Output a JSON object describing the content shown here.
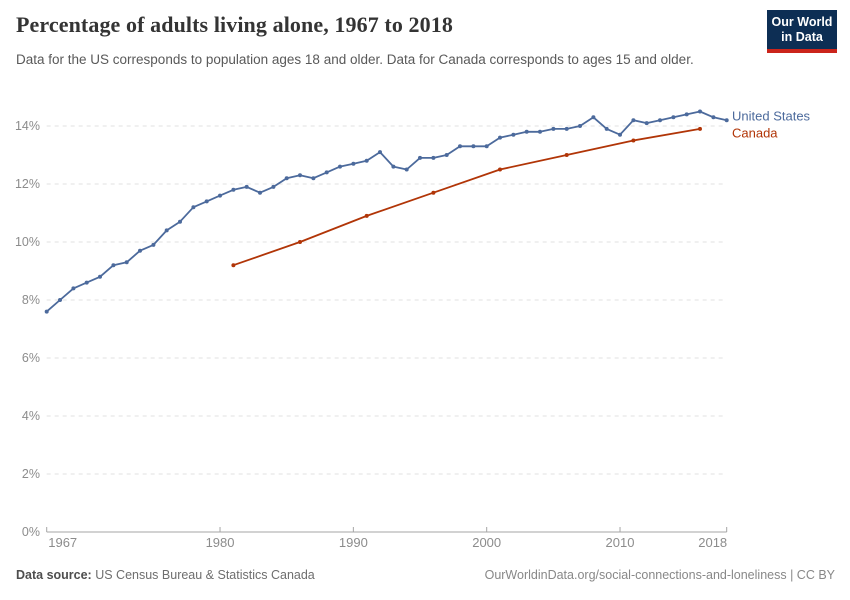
{
  "header": {
    "title": "Percentage of adults living alone, 1967 to 2018",
    "subtitle": "Data for the US corresponds to population ages 18 and older. Data for Canada corresponds to ages 15 and older.",
    "logo": {
      "line1": "Our World",
      "line2": "in Data",
      "bg_color": "#0D2E54",
      "accent_color": "#CB241B"
    }
  },
  "chart_data": {
    "type": "line",
    "title": "Percentage of adults living alone, 1967 to 2018",
    "xlabel": "",
    "ylabel": "",
    "xlim": [
      1967,
      2018
    ],
    "ylim": [
      0,
      14
    ],
    "grid": "horizontal-dashed",
    "legend_position": "right-of-line-end",
    "ytick_suffix": "%",
    "yticks": [
      0,
      2,
      4,
      6,
      8,
      10,
      12,
      14
    ],
    "xticks": [
      1967,
      1980,
      1990,
      2000,
      2010,
      2018
    ],
    "series": [
      {
        "name": "United States",
        "color": "#4C6A9C",
        "x": [
          1967,
          1968,
          1969,
          1970,
          1971,
          1972,
          1973,
          1974,
          1975,
          1976,
          1977,
          1978,
          1979,
          1980,
          1981,
          1982,
          1983,
          1984,
          1985,
          1986,
          1987,
          1988,
          1989,
          1990,
          1991,
          1992,
          1993,
          1994,
          1995,
          1996,
          1997,
          1998,
          1999,
          2000,
          2001,
          2002,
          2003,
          2004,
          2005,
          2006,
          2007,
          2008,
          2009,
          2010,
          2011,
          2012,
          2013,
          2014,
          2015,
          2016,
          2017,
          2018
        ],
        "values": [
          7.6,
          8.0,
          8.4,
          8.6,
          8.8,
          9.2,
          9.3,
          9.7,
          9.9,
          10.4,
          10.7,
          11.2,
          11.4,
          11.6,
          11.8,
          11.9,
          11.7,
          11.9,
          12.2,
          12.3,
          12.2,
          12.4,
          12.6,
          12.7,
          12.8,
          13.1,
          12.6,
          12.5,
          12.9,
          12.9,
          13.0,
          13.3,
          13.3,
          13.3,
          13.6,
          13.7,
          13.8,
          13.8,
          13.9,
          13.9,
          14.0,
          14.3,
          13.9,
          13.7,
          14.2,
          14.1,
          14.2,
          14.3,
          14.4,
          14.5,
          14.3,
          14.2
        ]
      },
      {
        "name": "Canada",
        "color": "#B13507",
        "x": [
          1981,
          1986,
          1991,
          1996,
          2001,
          2006,
          2011,
          2016
        ],
        "values": [
          9.2,
          10.0,
          10.9,
          11.7,
          12.5,
          13.0,
          13.5,
          13.9
        ]
      }
    ],
    "colors": {
      "gridline": "#E2E2E2",
      "axis": "#A5A5A5",
      "tick_label": "#8C8C8C"
    }
  },
  "footer": {
    "source_label": "Data source:",
    "source_text": " US Census Bureau & Statistics Canada",
    "credit": "OurWorldinData.org/social-connections-and-loneliness | CC BY"
  }
}
